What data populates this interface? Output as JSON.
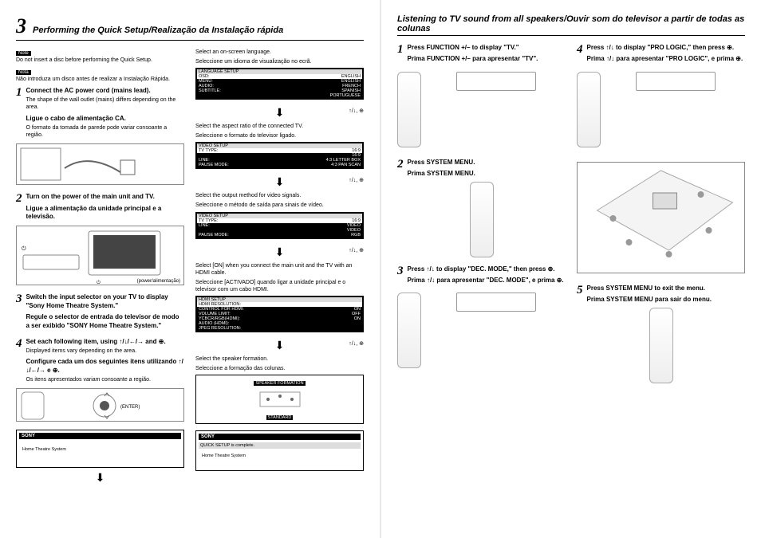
{
  "left_page": {
    "section_num": "3",
    "title": "Performing the Quick Setup/Realização da Instalação rápida",
    "note_tag1": "Note",
    "note1": "Do not insert a disc before performing the Quick Setup.",
    "note_tag2": "Nota",
    "note2": "Não introduza um disco antes de realizar a Instalação Rápida.",
    "steps": [
      {
        "n": "1",
        "bold": "Connect the AC power cord (mains lead).",
        "sub": "The shape of the wall outlet (mains) differs depending on the area.",
        "bold2": "Ligue o cabo de alimentação CA.",
        "sub2": "O formato da tomada de parede pode variar consoante a região."
      },
      {
        "n": "2",
        "bold": "Turn on the power of the main unit and TV.",
        "bold2": "Ligue a alimentação da unidade principal e a televisão."
      },
      {
        "n": "3",
        "bold": "Switch the input selector on your TV to display \"Sony Home Theatre System.\"",
        "bold2": "Regule o selector de entrada do televisor de modo a ser exibido \"SONY Home Theatre System.\""
      },
      {
        "n": "4",
        "bold": "Set each following item, using ↑/↓/←/→ and ⊕.",
        "sub": "Displayed items vary depending on the area.",
        "bold2": "Configure cada um dos seguintes itens utilizando ↑/↓/←/→ e ⊕.",
        "sub2": "Os itens apresentados variam consoante a região."
      }
    ],
    "enter_label": "(ENTER)",
    "power_label": "(power/alimentação)",
    "settings": [
      {
        "en": "Select an on-screen language.",
        "pt": "Seleccione um idioma de visualização no ecrã.",
        "osd_title": "LANGUAGE SETUP",
        "rows": [
          [
            "OSD:",
            "ENGLISH"
          ],
          [
            "MENU:",
            "ENGLISH"
          ],
          [
            "AUDIO:",
            "FRENCH"
          ],
          [
            "SUBTITLE:",
            "SPANISH"
          ],
          [
            "",
            "PORTUGUESE"
          ]
        ]
      },
      {
        "en": "Select the aspect ratio of the connected TV.",
        "pt": "Seleccione o formato do televisor ligado.",
        "osd_title": "VIDEO SETUP",
        "rows": [
          [
            "TV TYPE:",
            "16:9"
          ],
          [
            "",
            "16:9"
          ],
          [
            "LINE:",
            "4:3 LETTER BOX"
          ],
          [
            "PAUSE MODE:",
            "4:3 PAN SCAN"
          ]
        ]
      },
      {
        "en": "Select the output method for video signals.",
        "pt": "Seleccione o método de saída para sinais de vídeo.",
        "osd_title": "VIDEO SETUP",
        "rows": [
          [
            "TV TYPE:",
            "16:9"
          ],
          [
            "LINE:",
            "VIDEO"
          ],
          [
            "",
            "VIDEO"
          ],
          [
            "PAUSE MODE:",
            "RGB"
          ]
        ]
      },
      {
        "en": "Select [ON] when you connect the main unit and the TV with an HDMI cable.",
        "pt": "Seleccione [ACTIVADO] quando ligar a unidade principal e o televisor com um cabo HDMI.",
        "osd_title": "HDMI SETUP",
        "rows": [
          [
            "HDMI RESOLUTION:",
            ""
          ],
          [
            "CONTROL FOR HDMI:",
            "ON"
          ],
          [
            "VOLUME LIMIT:",
            "OFF"
          ],
          [
            "YCBCR/RGB(HDMI):",
            "ON"
          ],
          [
            "AUDIO (HDMI):",
            ""
          ],
          [
            "JPEG RESOLUTION:",
            ""
          ]
        ]
      },
      {
        "en": "Select the speaker formation.",
        "pt": "Seleccione a formação das colunas.",
        "speaker": "SPEAKER FORMATION",
        "speaker_val": "STANDARD"
      }
    ],
    "arrow_side": "↑/↓, ⊕",
    "sony_complete": "QUICK SETUP is complete.",
    "sony_hts": "Home Theatre System",
    "sony_brand": "SONY"
  },
  "right_page": {
    "title": "Listening to TV sound from all speakers/Ouvir som do televisor a partir de todas as colunas",
    "steps": [
      {
        "n": "1",
        "bold": "Press FUNCTION +/– to display \"TV.\"",
        "bold2": "Prima FUNCTION +/– para apresentar \"TV\"."
      },
      {
        "n": "2",
        "bold": "Press SYSTEM MENU.",
        "bold2": "Prima SYSTEM MENU."
      },
      {
        "n": "3",
        "bold": "Press ↑/↓ to display \"DEC. MODE,\" then press ⊕.",
        "bold2": "Prima ↑/↓ para apresentar \"DEC. MODE\", e prima ⊕."
      },
      {
        "n": "4",
        "bold": "Press ↑/↓ to display \"PRO LOGIC,\" then press ⊕.",
        "bold2": "Prima ↑/↓ para apresentar \"PRO LOGIC\", e prima ⊕."
      },
      {
        "n": "5",
        "bold": "Press SYSTEM MENU to exit the menu.",
        "bold2": "Prima SYSTEM MENU para sair do menu."
      }
    ]
  }
}
